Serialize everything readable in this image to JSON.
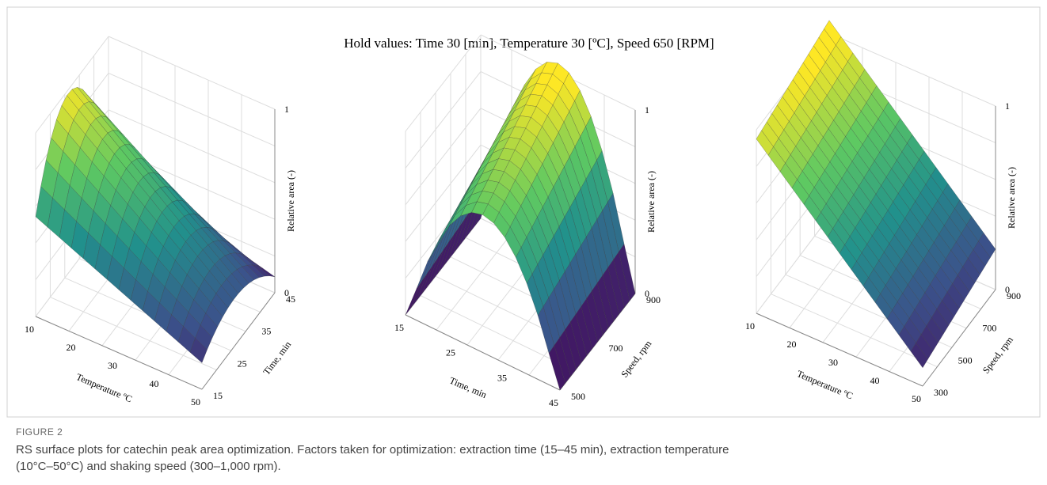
{
  "figure": {
    "hold_values": "Hold values:  Time  30 [min],  Temperature  30 [ºC], Speed 650 [RPM]",
    "plots": [
      {
        "x_label": "Temperature ºC",
        "x_ticks": [
          "10",
          "20",
          "30",
          "40",
          "50"
        ],
        "y_label": "Time, min",
        "y_ticks": [
          "15",
          "25",
          "35",
          "45"
        ],
        "z_label": "Relative area (-)",
        "z_ticks": [
          "0",
          "1"
        ]
      },
      {
        "x_label": "Time, min",
        "x_ticks": [
          "15",
          "25",
          "35",
          "45"
        ],
        "y_label": "Speed, rpm",
        "y_ticks": [
          "500",
          "700",
          "900"
        ],
        "z_label": "Relative area (-)",
        "z_ticks": [
          "0",
          "1"
        ]
      },
      {
        "x_label": "Temperature ºC",
        "x_ticks": [
          "10",
          "20",
          "30",
          "40",
          "50"
        ],
        "y_label": "Speed, rpm",
        "y_ticks": [
          "300",
          "500",
          "700",
          "900"
        ],
        "z_label": "Relative area (-)",
        "z_ticks": [
          "0",
          "1"
        ]
      }
    ],
    "caption_label": "FIGURE 2",
    "caption_lines": [
      "RS surface plots for catechin peak area optimization. Factors taken for optimization: extraction time (15–45 min), extraction temperature",
      "(10°C–50°C) and shaking speed (300–1,000 rpm)."
    ]
  }
}
